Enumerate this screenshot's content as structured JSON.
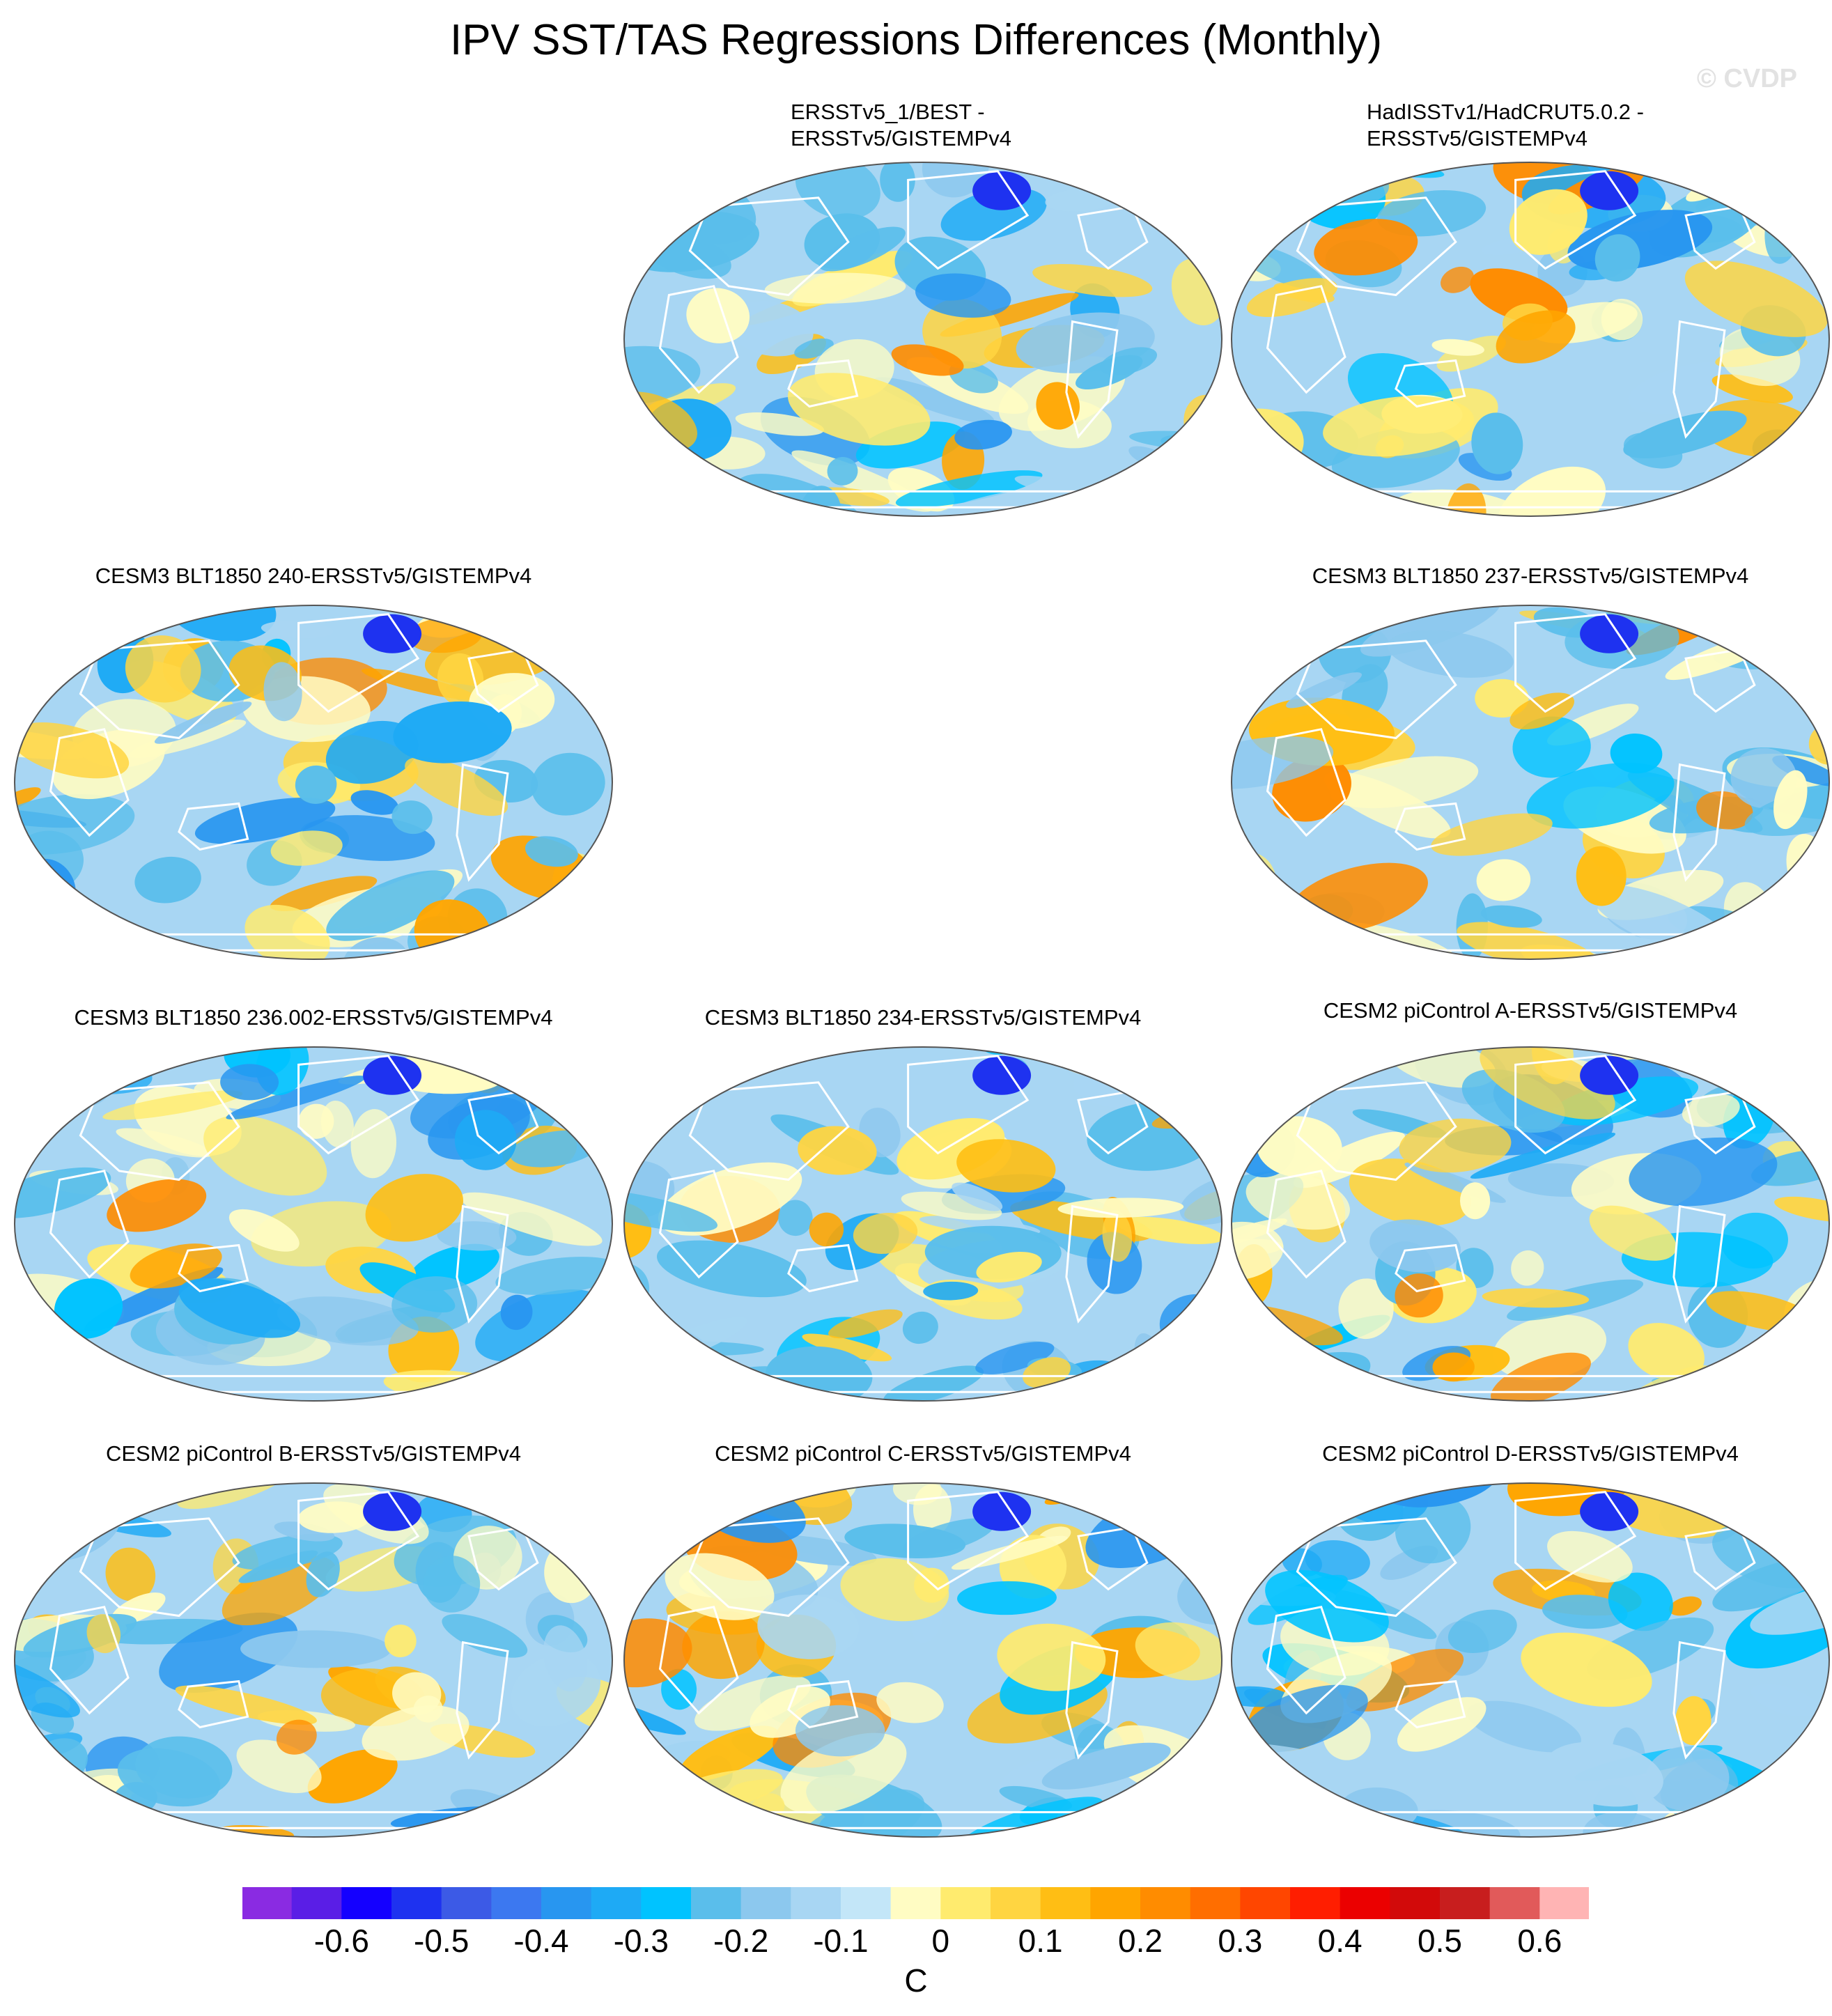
{
  "title": "IPV SST/TAS Regressions Differences (Monthly)",
  "watermark": "© CVDP",
  "units": "C",
  "panels": [
    {
      "id": "p1",
      "title_lines": [
        "ERSSTv5_1/BEST -",
        "ERSSTv5/GISTEMPv4"
      ]
    },
    {
      "id": "p2",
      "title_lines": [
        "HadISSTv1/HadCRUT5.0.2 -",
        "ERSSTv5/GISTEMPv4"
      ]
    },
    {
      "id": "p3",
      "title_lines": [
        "CESM3 BLT1850 240-ERSSTv5/GISTEMPv4"
      ]
    },
    {
      "id": "p4",
      "title_lines": [
        "CESM3 BLT1850 237-ERSSTv5/GISTEMPv4"
      ]
    },
    {
      "id": "p5",
      "title_lines": [
        "CESM3 BLT1850 236.002-ERSSTv5/GISTEMPv4"
      ]
    },
    {
      "id": "p6",
      "title_lines": [
        "CESM3 BLT1850 234-ERSSTv5/GISTEMPv4"
      ]
    },
    {
      "id": "p7",
      "title_lines": [
        "CESM2 piControl A-ERSSTv5/GISTEMPv4"
      ]
    },
    {
      "id": "p8",
      "title_lines": [
        "CESM2 piControl B-ERSSTv5/GISTEMPv4"
      ]
    },
    {
      "id": "p9",
      "title_lines": [
        "CESM2 piControl C-ERSSTv5/GISTEMPv4"
      ]
    },
    {
      "id": "p10",
      "title_lines": [
        "CESM2 piControl D-ERSSTv5/GISTEMPv4"
      ]
    }
  ],
  "colorbar": {
    "colors": [
      "#8a2be2",
      "#5a1ee6",
      "#1400ff",
      "#1e32f0",
      "#3c5ae6",
      "#3c78f0",
      "#2896f0",
      "#1eaaf5",
      "#00c3ff",
      "#5abeeb",
      "#8cc8ee",
      "#a8d6f3",
      "#c3e6f8",
      "#fffcc3",
      "#ffeb6e",
      "#ffd541",
      "#ffbe14",
      "#ffa500",
      "#ff8c00",
      "#ff6e00",
      "#ff4600",
      "#ff1e00",
      "#eb0000",
      "#d20a0a",
      "#c81e1e",
      "#e15a5a",
      "#ffb4b4"
    ],
    "tick_labels": [
      "-0.6",
      "-0.5",
      "-0.4",
      "-0.3",
      "-0.2",
      "-0.1",
      "0",
      "0.1",
      "0.2",
      "0.3",
      "0.4",
      "0.5",
      "0.6"
    ]
  }
}
